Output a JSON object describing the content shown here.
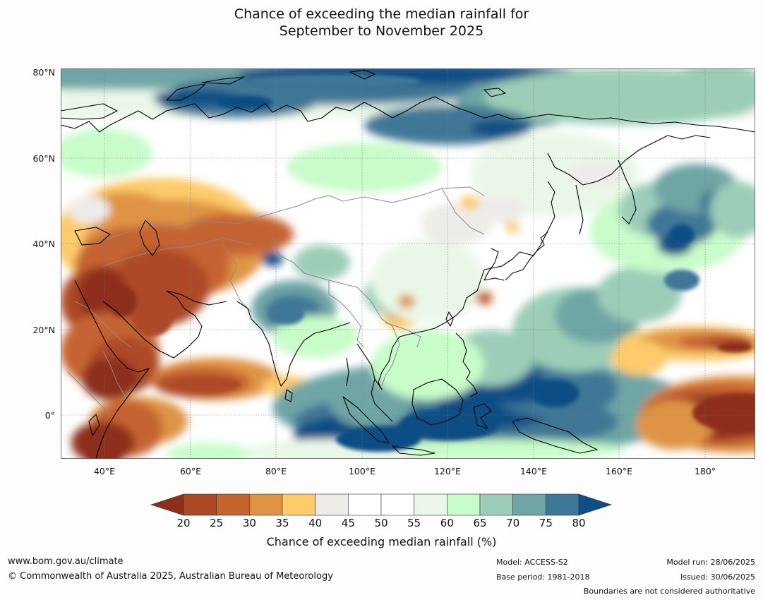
{
  "title_line1": "Chance of exceeding the median rainfall for",
  "title_line2": "September to November 2025",
  "map": {
    "lat_labels": [
      "80°N",
      "60°N",
      "40°N",
      "20°N",
      "0°"
    ],
    "lon_labels": [
      "40°E",
      "60°E",
      "80°E",
      "100°E",
      "120°E",
      "140°E",
      "160°E",
      "180°"
    ],
    "lon_range": [
      30,
      192
    ],
    "lat_range": [
      -10,
      81
    ],
    "colors": {
      "20": "#8e2f1c",
      "25": "#ad4a25",
      "30": "#c66430",
      "35": "#df9445",
      "40": "#fdcb6a",
      "45": "#eeece8",
      "50": "#ffffff",
      "55": "#ffffff",
      "60": "#eaf7e8",
      "65": "#c8fcc9",
      "70": "#9bcdb8",
      "75": "#6fa5a5",
      "80": "#3f7796",
      "85": "#114d85"
    }
  },
  "colorbar": {
    "ticks": [
      "20",
      "25",
      "30",
      "35",
      "40",
      "45",
      "50",
      "55",
      "60",
      "65",
      "70",
      "75",
      "80"
    ],
    "colors": [
      "#ad4a25",
      "#c66430",
      "#df9445",
      "#fdcb6a",
      "#eeece8",
      "#ffffff",
      "#ffffff",
      "#eaf7e8",
      "#c8fcc9",
      "#9bcdb8",
      "#6fa5a5",
      "#3f7796"
    ],
    "under_color": "#8e2f1c",
    "over_color": "#114d85",
    "label": "Chance of exceeding median rainfall (%)"
  },
  "footer": {
    "website": "www.bom.gov.au/climate",
    "copyright": "© Commonwealth of Australia 2025, Australian Bureau of Meteorology",
    "model": "Model: ACCESS-S2",
    "base_period": "Base period: 1981-2018",
    "model_run": "Model run: 28/06/2025",
    "issued": "Issued: 30/06/2025",
    "boundaries_note": "Boundaries are not considered authoritative"
  }
}
